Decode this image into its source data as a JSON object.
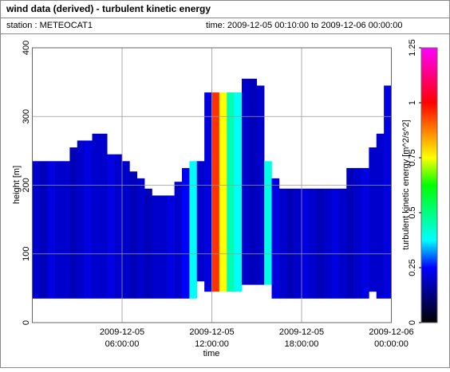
{
  "chart_data": {
    "type": "heatmap",
    "title": "wind data (derived) - turbulent kinetic energy",
    "station": "station : METEOCAT1",
    "period": "time: 2009-12-05 00:10:00 to 2009-12-06 00:00:00",
    "x_label": "time",
    "y_label": "height [m]",
    "colorbar_label": "turbulent kinetic energy [m^2/s^2]",
    "xlim": [
      0,
      24
    ],
    "xticks": [
      {
        "value": 6,
        "label": [
          "2009-12-05",
          "06:00:00"
        ]
      },
      {
        "value": 12,
        "label": [
          "2009-12-05",
          "12:00:00"
        ]
      },
      {
        "value": 18,
        "label": [
          "2009-12-05",
          "18:00:00"
        ]
      },
      {
        "value": 24,
        "label": [
          "2009-12-06",
          "00:00:00"
        ]
      }
    ],
    "ylim": [
      0,
      400
    ],
    "yticks": [
      0,
      100,
      200,
      300,
      400
    ],
    "clim": [
      0,
      1.25
    ],
    "cticks": [
      0,
      0.25,
      0.5,
      0.75,
      1,
      1.25
    ],
    "colorscale": [
      [
        0,
        "#000000"
      ],
      [
        0.25,
        "#0000ff"
      ],
      [
        0.375,
        "#00ffff"
      ],
      [
        0.625,
        "#00ff00"
      ],
      [
        0.75,
        "#ffff00"
      ],
      [
        1,
        "#ff0000"
      ],
      [
        1.25,
        "#ff00ff"
      ]
    ],
    "column_width": 0.5,
    "x": [
      0.25,
      0.75,
      1.25,
      1.75,
      2.25,
      2.75,
      3.25,
      3.75,
      4.25,
      4.75,
      5.25,
      5.75,
      6.25,
      6.75,
      7.25,
      7.75,
      8.25,
      8.75,
      9.25,
      9.75,
      10.25,
      10.75,
      11.25,
      11.75,
      12.25,
      12.75,
      13.25,
      13.75,
      14.25,
      14.75,
      15.25,
      15.75,
      16.25,
      16.75,
      17.25,
      17.75,
      18.25,
      18.75,
      19.25,
      19.75,
      20.25,
      20.75,
      21.25,
      21.75,
      22.25,
      22.75,
      23.25,
      23.75
    ],
    "top": [
      235,
      235,
      235,
      235,
      235,
      255,
      265,
      265,
      275,
      275,
      245,
      245,
      235,
      220,
      210,
      195,
      185,
      185,
      185,
      205,
      225,
      235,
      235,
      335,
      335,
      335,
      335,
      335,
      355,
      355,
      345,
      235,
      210,
      195,
      195,
      195,
      195,
      195,
      195,
      195,
      195,
      195,
      225,
      225,
      225,
      255,
      275,
      345
    ],
    "bottom": [
      35,
      35,
      35,
      35,
      35,
      35,
      35,
      35,
      35,
      35,
      35,
      35,
      35,
      35,
      35,
      35,
      35,
      35,
      35,
      35,
      35,
      35,
      60,
      45,
      45,
      45,
      45,
      45,
      55,
      55,
      55,
      55,
      35,
      35,
      35,
      35,
      35,
      35,
      35,
      35,
      35,
      35,
      35,
      35,
      35,
      45,
      35,
      35
    ],
    "values": [
      0.2,
      0.18,
      0.22,
      0.2,
      0.2,
      0.18,
      0.2,
      0.22,
      0.2,
      0.2,
      0.22,
      0.2,
      0.2,
      0.18,
      0.2,
      0.18,
      0.2,
      0.2,
      0.22,
      0.2,
      0.25,
      0.38,
      0.2,
      0.22,
      0.95,
      0.75,
      0.45,
      0.38,
      0.2,
      0.18,
      0.2,
      0.4,
      0.22,
      0.2,
      0.18,
      0.2,
      0.22,
      0.2,
      0.18,
      0.2,
      0.22,
      0.2,
      0.18,
      0.2,
      0.22,
      0.2,
      0.2,
      0.22
    ]
  }
}
